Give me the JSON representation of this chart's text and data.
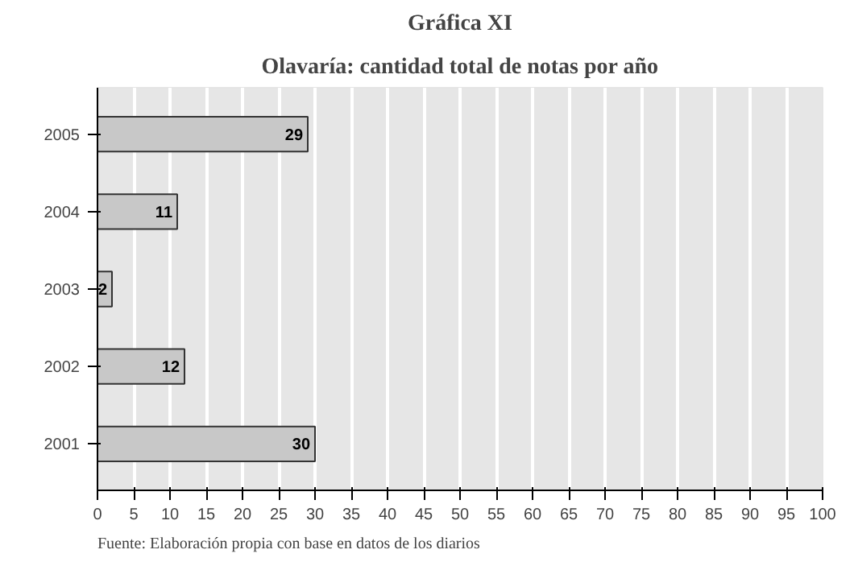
{
  "chart_data": {
    "type": "bar",
    "orientation": "horizontal",
    "title": "Gráfica XI",
    "subtitle": "Olavaría: cantidad total de notas por año",
    "categories": [
      "2005",
      "2004",
      "2003",
      "2002",
      "2001"
    ],
    "values": [
      29,
      11,
      2,
      12,
      30
    ],
    "color": "#c8c8c8",
    "xlim": [
      0,
      100
    ],
    "xticks": [
      0,
      5,
      10,
      15,
      20,
      25,
      30,
      35,
      40,
      45,
      50,
      55,
      60,
      65,
      70,
      75,
      80,
      85,
      90,
      95,
      100
    ],
    "grid": "x",
    "data_labels": true,
    "annotations": [
      "Fuente: Elaboración propia con base en datos de los diarios"
    ]
  }
}
